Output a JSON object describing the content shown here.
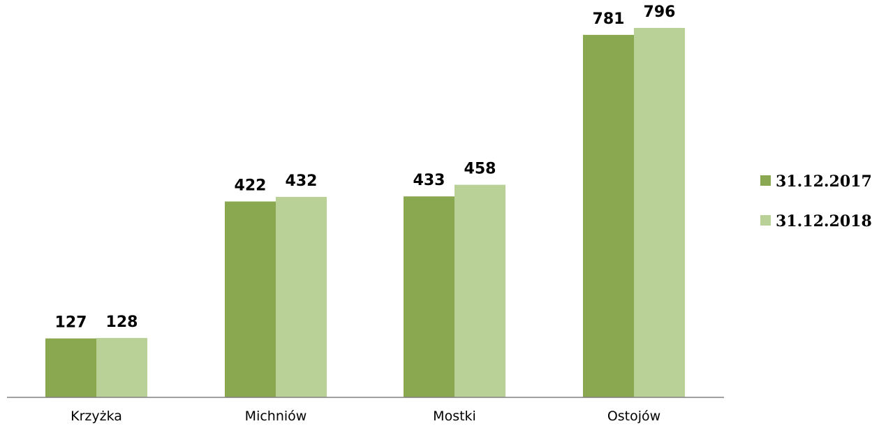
{
  "chart_data": {
    "type": "bar",
    "title": "",
    "xlabel": "",
    "ylabel": "",
    "categories": [
      "Krzyżka",
      "Michniów",
      "Mostki",
      "Ostojów"
    ],
    "series": [
      {
        "name": "31.12.2017",
        "color": "#8aa850",
        "values": [
          127,
          422,
          433,
          781
        ]
      },
      {
        "name": "31.12.2018",
        "color": "#b9d196",
        "values": [
          128,
          432,
          458,
          796
        ]
      }
    ],
    "ylim": [
      0,
      820
    ],
    "grid": false,
    "legend_position": "right",
    "data_labels": true,
    "axis_color": "#808080"
  }
}
